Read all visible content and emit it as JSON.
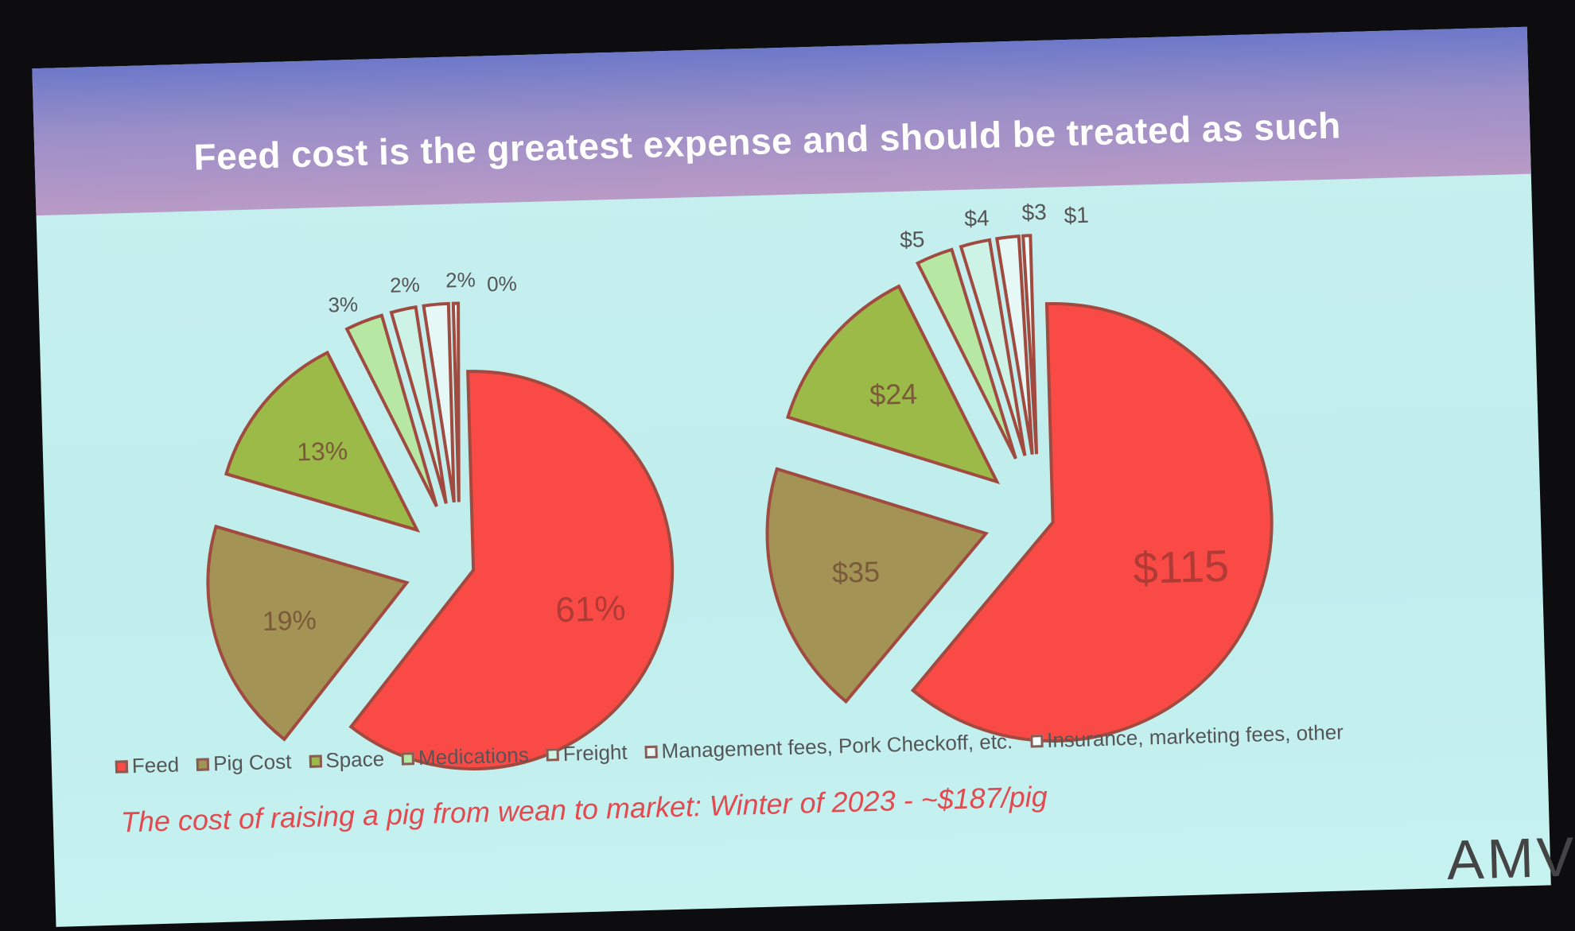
{
  "title": "Feed cost is the greatest expense and should be treated as such",
  "chart_data": [
    {
      "type": "pie",
      "name": "percent",
      "categories": [
        "Feed",
        "Pig Cost",
        "Space",
        "Medications",
        "Freight",
        "Management fees, Pork Checkoff, etc.",
        "Insurance, marketing fees, other"
      ],
      "values": [
        61,
        19,
        13,
        3,
        2,
        2,
        0
      ],
      "labels": [
        "61%",
        "19%",
        "13%",
        "3%",
        "2%",
        "2%",
        "0%"
      ]
    },
    {
      "type": "pie",
      "name": "dollars",
      "categories": [
        "Feed",
        "Pig Cost",
        "Space",
        "Medications",
        "Freight",
        "Management fees, Pork Checkoff, etc.",
        "Insurance, marketing fees, other"
      ],
      "values": [
        115,
        35,
        24,
        5,
        4,
        3,
        1
      ],
      "labels": [
        "$115",
        "$35",
        "$24",
        "$5",
        "$4",
        "$3",
        "$1"
      ]
    }
  ],
  "legend": [
    "Feed",
    "Pig Cost",
    "Space",
    "Medications",
    "Freight",
    "Management fees, Pork Checkoff, etc.",
    "Insurance, marketing fees, other"
  ],
  "colors": [
    "#fa4a46",
    "#a39455",
    "#9cba48",
    "#b6e8a4",
    "#cdf3e6",
    "#e6f8f6",
    "#f2ffff"
  ],
  "subtitle": "The cost of raising a pig from wean to market: Winter of 2023 - ~$187/pig",
  "logo": "AMVC"
}
